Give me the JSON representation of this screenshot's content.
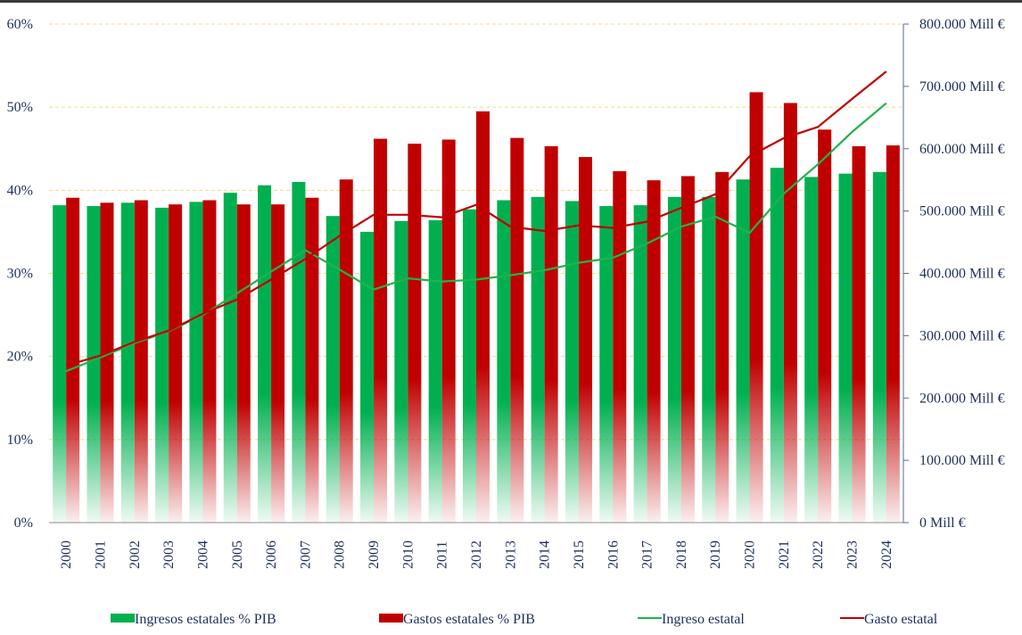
{
  "chart_data": {
    "type": "bar+line",
    "categories": [
      "2000",
      "2001",
      "2002",
      "2003",
      "2004",
      "2005",
      "2006",
      "2007",
      "2008",
      "2009",
      "2010",
      "2011",
      "2012",
      "2013",
      "2014",
      "2015",
      "2016",
      "2017",
      "2018",
      "2019",
      "2020",
      "2021",
      "2022",
      "2023",
      "2024"
    ],
    "series": [
      {
        "name": "Ingresos estatales % PIB",
        "type": "bar",
        "axis": "left",
        "color": "#00b050",
        "values": [
          38.2,
          38.1,
          38.5,
          37.9,
          38.6,
          39.7,
          40.6,
          41.0,
          36.9,
          35.0,
          36.3,
          36.4,
          37.7,
          38.8,
          39.2,
          38.7,
          38.1,
          38.2,
          39.2,
          39.2,
          41.3,
          42.7,
          41.6,
          42.0,
          42.2
        ]
      },
      {
        "name": "Gastos estatales % PIB",
        "type": "bar",
        "axis": "left",
        "color": "#c00000",
        "values": [
          39.1,
          38.5,
          38.8,
          38.3,
          38.8,
          38.3,
          38.3,
          39.1,
          41.3,
          46.2,
          45.6,
          46.1,
          49.5,
          46.3,
          45.3,
          44.0,
          42.3,
          41.2,
          41.7,
          42.2,
          51.8,
          50.5,
          47.3,
          45.3,
          45.4
        ]
      },
      {
        "name": "Ingreso estatal",
        "type": "line",
        "axis": "right",
        "color": "#00b050",
        "values": [
          243000,
          265000,
          288000,
          307000,
          333000,
          368000,
          403000,
          437000,
          406000,
          374000,
          392000,
          387000,
          390000,
          397000,
          405000,
          417000,
          425000,
          448000,
          475000,
          491000,
          465000,
          528000,
          575000,
          627000,
          673000
        ]
      },
      {
        "name": "Gasto estatal",
        "type": "line",
        "axis": "right",
        "color": "#c00000",
        "values": [
          252000,
          268000,
          290000,
          308000,
          335000,
          358000,
          390000,
          423000,
          460000,
          494000,
          494000,
          490000,
          510000,
          475000,
          468000,
          477000,
          473000,
          483000,
          505000,
          527000,
          588000,
          617000,
          635000,
          680000,
          724000
        ]
      }
    ],
    "left_axis": {
      "ylim": [
        0,
        60
      ],
      "ticks": [
        "0%",
        "10%",
        "20%",
        "30%",
        "40%",
        "50%",
        "60%"
      ]
    },
    "right_axis": {
      "ylim": [
        0,
        800000
      ],
      "ticks": [
        "0 Mill €",
        "100.000 Mill €",
        "200.000 Mill €",
        "300.000 Mill €",
        "400.000 Mill €",
        "500.000 Mill €",
        "600.000 Mill €",
        "700.000 Mill €",
        "800.000 Mill €"
      ]
    },
    "grid": "horizontal dashed",
    "legend_position": "bottom"
  },
  "legend": {
    "items": [
      {
        "label": "Ingresos estatales % PIB",
        "kind": "bar",
        "color": "#00b050"
      },
      {
        "label": "Gastos estatales % PIB",
        "kind": "bar",
        "color": "#c00000"
      },
      {
        "label": "Ingreso estatal",
        "kind": "line",
        "color": "#00b050"
      },
      {
        "label": "Gasto estatal",
        "kind": "line",
        "color": "#c00000"
      }
    ]
  }
}
